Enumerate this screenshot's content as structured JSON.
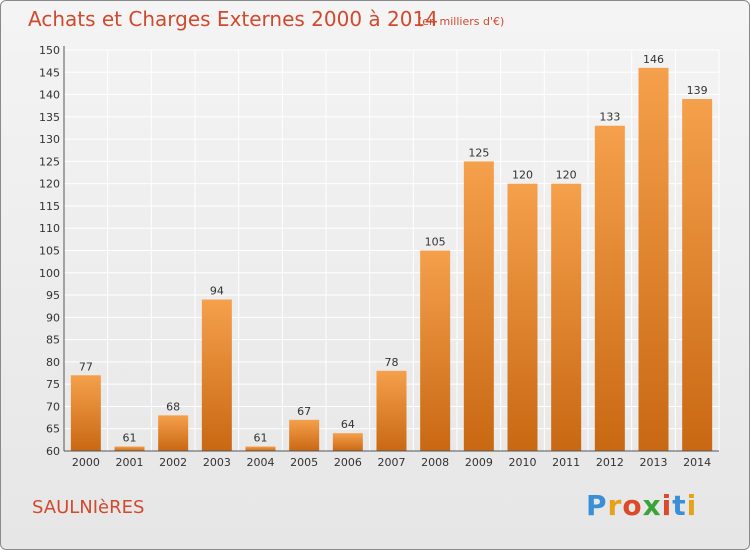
{
  "header": {
    "title": "Achats et Charges Externes 2000 à 2014",
    "subtitle": "(en milliers d'€)"
  },
  "footer": {
    "commune": "SAULNIèRES",
    "brand": "Proxiti",
    "brand_colors": [
      "#3a8fd6",
      "#e8a21a",
      "#d94b2b",
      "#3aa33a",
      "#d94b2b",
      "#3a8fd6",
      "#e8a21a"
    ]
  },
  "colors": {
    "bar_light": "#f5a04c",
    "bar_dark": "#c96813",
    "grid": "#ffffff",
    "text": "#333333",
    "accent": "#d04a2f"
  },
  "chart_data": {
    "type": "bar",
    "categories": [
      "2000",
      "2001",
      "2002",
      "2003",
      "2004",
      "2005",
      "2006",
      "2007",
      "2008",
      "2009",
      "2010",
      "2011",
      "2012",
      "2013",
      "2014"
    ],
    "values": [
      77,
      61,
      68,
      94,
      61,
      67,
      64,
      78,
      105,
      125,
      120,
      120,
      133,
      146,
      139
    ],
    "title": "Achats et Charges Externes 2000 à 2014",
    "subtitle": "(en milliers d'€)",
    "xlabel": "",
    "ylabel": "",
    "ylim": [
      60,
      150
    ],
    "yticks": [
      60,
      65,
      70,
      75,
      80,
      85,
      90,
      95,
      100,
      105,
      110,
      115,
      120,
      125,
      130,
      135,
      140,
      145,
      150
    ],
    "grid": true,
    "data_labels": true
  }
}
